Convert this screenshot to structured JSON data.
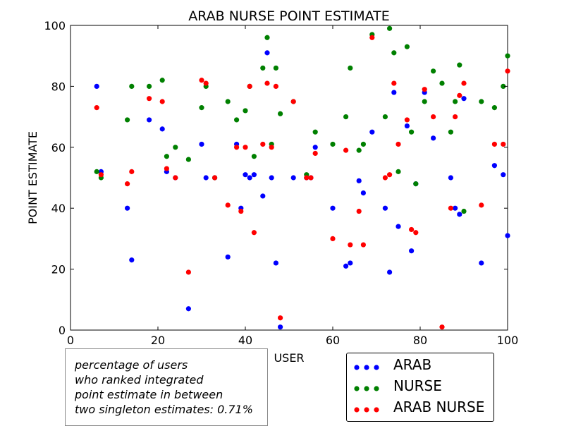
{
  "chart_data": {
    "type": "scatter",
    "title": "ARAB NURSE POINT ESTIMATE",
    "xlabel": "USER",
    "ylabel": "POINT ESTIMATE",
    "xlim": [
      0,
      100
    ],
    "ylim": [
      0,
      100
    ],
    "xticks": [
      "0",
      "20",
      "40",
      "60",
      "80",
      "100"
    ],
    "yticks": [
      "0",
      "20",
      "40",
      "60",
      "80",
      "100"
    ],
    "grid": false,
    "legend_placement": "bottom-right, outside axes",
    "series": [
      {
        "name": "ARAB",
        "color": "#0000ff",
        "points": [
          [
            6,
            80
          ],
          [
            7,
            52
          ],
          [
            13,
            40
          ],
          [
            14,
            23
          ],
          [
            18,
            69
          ],
          [
            21,
            66
          ],
          [
            22,
            52
          ],
          [
            24,
            50
          ],
          [
            27,
            7
          ],
          [
            30,
            61
          ],
          [
            31,
            50
          ],
          [
            33,
            50
          ],
          [
            36,
            24
          ],
          [
            38,
            61
          ],
          [
            39,
            40
          ],
          [
            40,
            51
          ],
          [
            41,
            50
          ],
          [
            42,
            51
          ],
          [
            44,
            44
          ],
          [
            45,
            91
          ],
          [
            46,
            50
          ],
          [
            47,
            22
          ],
          [
            48,
            1
          ],
          [
            51,
            50
          ],
          [
            54,
            50
          ],
          [
            55,
            50
          ],
          [
            56,
            60
          ],
          [
            60,
            40
          ],
          [
            63,
            21
          ],
          [
            64,
            22
          ],
          [
            66,
            49
          ],
          [
            67,
            45
          ],
          [
            69,
            65
          ],
          [
            72,
            40
          ],
          [
            73,
            19
          ],
          [
            74,
            78
          ],
          [
            75,
            34
          ],
          [
            77,
            67
          ],
          [
            78,
            26
          ],
          [
            79,
            48
          ],
          [
            81,
            78
          ],
          [
            83,
            63
          ],
          [
            87,
            50
          ],
          [
            88,
            40
          ],
          [
            89,
            38
          ],
          [
            90,
            76
          ],
          [
            94,
            22
          ],
          [
            97,
            54
          ],
          [
            99,
            51
          ],
          [
            100,
            31
          ]
        ]
      },
      {
        "name": "NURSE",
        "color": "#008000",
        "points": [
          [
            6,
            52
          ],
          [
            7,
            50
          ],
          [
            13,
            69
          ],
          [
            14,
            80
          ],
          [
            18,
            80
          ],
          [
            21,
            82
          ],
          [
            22,
            57
          ],
          [
            24,
            60
          ],
          [
            27,
            56
          ],
          [
            30,
            73
          ],
          [
            31,
            80
          ],
          [
            33,
            50
          ],
          [
            36,
            75
          ],
          [
            38,
            69
          ],
          [
            40,
            72
          ],
          [
            41,
            80
          ],
          [
            42,
            57
          ],
          [
            44,
            86
          ],
          [
            45,
            96
          ],
          [
            46,
            61
          ],
          [
            47,
            86
          ],
          [
            48,
            71
          ],
          [
            51,
            75
          ],
          [
            54,
            51
          ],
          [
            56,
            65
          ],
          [
            60,
            61
          ],
          [
            63,
            70
          ],
          [
            64,
            86
          ],
          [
            66,
            59
          ],
          [
            67,
            61
          ],
          [
            69,
            97
          ],
          [
            72,
            70
          ],
          [
            73,
            99
          ],
          [
            74,
            91
          ],
          [
            75,
            52
          ],
          [
            77,
            93
          ],
          [
            78,
            65
          ],
          [
            79,
            48
          ],
          [
            81,
            75
          ],
          [
            83,
            85
          ],
          [
            85,
            81
          ],
          [
            87,
            65
          ],
          [
            88,
            75
          ],
          [
            89,
            87
          ],
          [
            90,
            39
          ],
          [
            94,
            75
          ],
          [
            97,
            73
          ],
          [
            99,
            80
          ],
          [
            100,
            90
          ]
        ]
      },
      {
        "name": "ARAB NURSE",
        "color": "#ff0000",
        "points": [
          [
            6,
            73
          ],
          [
            7,
            51
          ],
          [
            13,
            48
          ],
          [
            14,
            52
          ],
          [
            18,
            76
          ],
          [
            21,
            75
          ],
          [
            22,
            53
          ],
          [
            24,
            50
          ],
          [
            27,
            19
          ],
          [
            30,
            82
          ],
          [
            31,
            81
          ],
          [
            33,
            50
          ],
          [
            36,
            41
          ],
          [
            38,
            60
          ],
          [
            39,
            39
          ],
          [
            40,
            60
          ],
          [
            41,
            80
          ],
          [
            42,
            32
          ],
          [
            44,
            61
          ],
          [
            45,
            81
          ],
          [
            46,
            60
          ],
          [
            47,
            80
          ],
          [
            48,
            4
          ],
          [
            51,
            75
          ],
          [
            54,
            50
          ],
          [
            55,
            50
          ],
          [
            56,
            58
          ],
          [
            60,
            30
          ],
          [
            63,
            59
          ],
          [
            64,
            28
          ],
          [
            66,
            39
          ],
          [
            67,
            28
          ],
          [
            69,
            96
          ],
          [
            72,
            50
          ],
          [
            73,
            51
          ],
          [
            74,
            81
          ],
          [
            75,
            61
          ],
          [
            77,
            69
          ],
          [
            78,
            33
          ],
          [
            79,
            32
          ],
          [
            81,
            79
          ],
          [
            83,
            70
          ],
          [
            85,
            1
          ],
          [
            87,
            40
          ],
          [
            88,
            70
          ],
          [
            89,
            77
          ],
          [
            90,
            81
          ],
          [
            94,
            41
          ],
          [
            97,
            61
          ],
          [
            99,
            61
          ],
          [
            100,
            85
          ]
        ]
      }
    ]
  },
  "note": {
    "lines": [
      "percentage of users",
      "who ranked integrated",
      "point estimate in between",
      "two singleton estimates: 0.71%"
    ]
  },
  "legend": {
    "items": [
      {
        "label": "ARAB",
        "color": "#0000ff"
      },
      {
        "label": "NURSE",
        "color": "#008000"
      },
      {
        "label": "ARAB NURSE",
        "color": "#ff0000"
      }
    ]
  }
}
